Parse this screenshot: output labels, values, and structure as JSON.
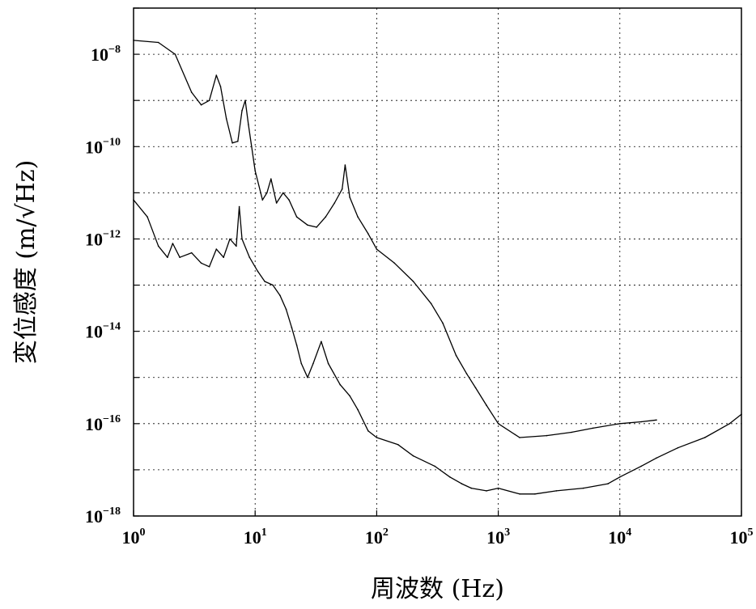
{
  "chart_data": {
    "type": "line",
    "title": "",
    "xlabel": "周波数 (Hz)",
    "ylabel": "変位感度 (m/√Hz)",
    "x_scale": "log",
    "y_scale": "log",
    "xlim": [
      1,
      100000
    ],
    "ylim": [
      1e-18,
      1e-07
    ],
    "grid": true,
    "legend": "none",
    "x_ticks": [
      {
        "base": "10",
        "exp": "0",
        "value": 1
      },
      {
        "base": "10",
        "exp": "1",
        "value": 10
      },
      {
        "base": "10",
        "exp": "2",
        "value": 100
      },
      {
        "base": "10",
        "exp": "3",
        "value": 1000
      },
      {
        "base": "10",
        "exp": "4",
        "value": 10000
      },
      {
        "base": "10",
        "exp": "5",
        "value": 100000
      }
    ],
    "y_ticks": [
      {
        "base": "10",
        "exp": "−8",
        "value": 1e-08
      },
      {
        "base": "10",
        "exp": "−10",
        "value": 1e-10
      },
      {
        "base": "10",
        "exp": "−12",
        "value": 1e-12
      },
      {
        "base": "10",
        "exp": "−14",
        "value": 1e-14
      },
      {
        "base": "10",
        "exp": "−16",
        "value": 1e-16
      },
      {
        "base": "10",
        "exp": "−18",
        "value": 1e-18
      }
    ],
    "series": [
      {
        "color": "#000000",
        "points": [
          [
            1,
            2e-08
          ],
          [
            1.6,
            1.8e-08
          ],
          [
            2.2,
            1e-08
          ],
          [
            3,
            1.5e-09
          ],
          [
            3.6,
            8e-10
          ],
          [
            4.2,
            1e-09
          ],
          [
            4.8,
            3.5e-09
          ],
          [
            5.2,
            2e-09
          ],
          [
            5.8,
            4e-10
          ],
          [
            6.5,
            1.2e-10
          ],
          [
            7.2,
            1.3e-10
          ],
          [
            7.8,
            6e-10
          ],
          [
            8.3,
            1e-09
          ],
          [
            8.8,
            3e-10
          ],
          [
            10,
            3e-11
          ],
          [
            11.5,
            7e-12
          ],
          [
            12.5,
            1e-11
          ],
          [
            13.5,
            2e-11
          ],
          [
            15,
            6e-12
          ],
          [
            17,
            1e-11
          ],
          [
            19,
            7e-12
          ],
          [
            22,
            3e-12
          ],
          [
            27,
            2e-12
          ],
          [
            32,
            1.8e-12
          ],
          [
            38,
            3e-12
          ],
          [
            45,
            6e-12
          ],
          [
            52,
            1.2e-11
          ],
          [
            55,
            4e-11
          ],
          [
            60,
            8e-12
          ],
          [
            70,
            3e-12
          ],
          [
            85,
            1.3e-12
          ],
          [
            100,
            6e-13
          ],
          [
            140,
            3e-13
          ],
          [
            200,
            1.2e-13
          ],
          [
            280,
            4e-14
          ],
          [
            350,
            1.5e-14
          ],
          [
            450,
            3e-15
          ],
          [
            550,
            1.2e-15
          ],
          [
            650,
            6e-16
          ],
          [
            800,
            2.5e-16
          ],
          [
            1000,
            1e-16
          ],
          [
            1500,
            5e-17
          ],
          [
            2500,
            5.5e-17
          ],
          [
            4000,
            6.5e-17
          ],
          [
            6000,
            8e-17
          ],
          [
            10000,
            1e-16
          ],
          [
            15000,
            1.1e-16
          ],
          [
            20000,
            1.2e-16
          ]
        ]
      },
      {
        "color": "#000000",
        "points": [
          [
            1,
            7e-12
          ],
          [
            1.3,
            3e-12
          ],
          [
            1.6,
            7e-13
          ],
          [
            1.9,
            4e-13
          ],
          [
            2.1,
            8e-13
          ],
          [
            2.4,
            4e-13
          ],
          [
            3,
            5e-13
          ],
          [
            3.6,
            3e-13
          ],
          [
            4.2,
            2.5e-13
          ],
          [
            4.8,
            6e-13
          ],
          [
            5.5,
            4e-13
          ],
          [
            6.2,
            1e-12
          ],
          [
            7,
            7e-13
          ],
          [
            7.4,
            5e-12
          ],
          [
            7.8,
            1e-12
          ],
          [
            9,
            4e-13
          ],
          [
            10.5,
            2e-13
          ],
          [
            12,
            1.2e-13
          ],
          [
            14,
            1e-13
          ],
          [
            16,
            6e-14
          ],
          [
            18,
            3e-14
          ],
          [
            20,
            1.2e-14
          ],
          [
            22,
            5e-15
          ],
          [
            24,
            2e-15
          ],
          [
            27,
            1e-15
          ],
          [
            30,
            2e-15
          ],
          [
            35,
            6e-15
          ],
          [
            40,
            2e-15
          ],
          [
            50,
            7e-16
          ],
          [
            60,
            4e-16
          ],
          [
            70,
            2e-16
          ],
          [
            85,
            7e-17
          ],
          [
            100,
            5e-17
          ],
          [
            150,
            3.5e-17
          ],
          [
            200,
            2e-17
          ],
          [
            300,
            1.2e-17
          ],
          [
            400,
            7e-18
          ],
          [
            500,
            5e-18
          ],
          [
            600,
            4e-18
          ],
          [
            800,
            3.5e-18
          ],
          [
            1000,
            4e-18
          ],
          [
            1500,
            3e-18
          ],
          [
            2000,
            3e-18
          ],
          [
            3000,
            3.5e-18
          ],
          [
            5000,
            4e-18
          ],
          [
            8000,
            5e-18
          ],
          [
            10000,
            7e-18
          ],
          [
            15000,
            1.2e-17
          ],
          [
            20000,
            1.8e-17
          ],
          [
            30000,
            3e-17
          ],
          [
            50000,
            5e-17
          ],
          [
            80000,
            1e-16
          ],
          [
            100000,
            1.6e-16
          ]
        ]
      }
    ]
  }
}
